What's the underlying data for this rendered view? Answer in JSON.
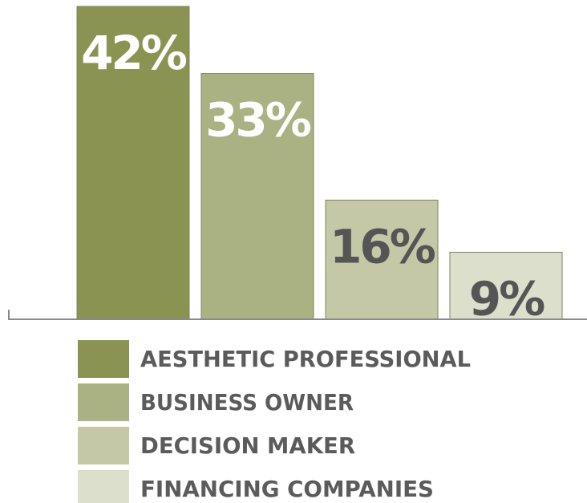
{
  "chart_data": {
    "type": "bar",
    "categories": [
      "AESTHETIC PROFESSIONAL",
      "BUSINESS OWNER",
      "DECISION MAKER",
      "FINANCING COMPANIES"
    ],
    "values": [
      42,
      33,
      16,
      9
    ],
    "value_labels": [
      "42%",
      "33%",
      "16%",
      "9%"
    ],
    "ylim": [
      0,
      42
    ],
    "grid": false,
    "legend_position": "bottom",
    "colors": [
      "#8a9352",
      "#aab283",
      "#c4c8a6",
      "#dcdfcb"
    ],
    "label_colors": [
      "#ffffff",
      "#ffffff",
      "#555555",
      "#555555"
    ]
  }
}
